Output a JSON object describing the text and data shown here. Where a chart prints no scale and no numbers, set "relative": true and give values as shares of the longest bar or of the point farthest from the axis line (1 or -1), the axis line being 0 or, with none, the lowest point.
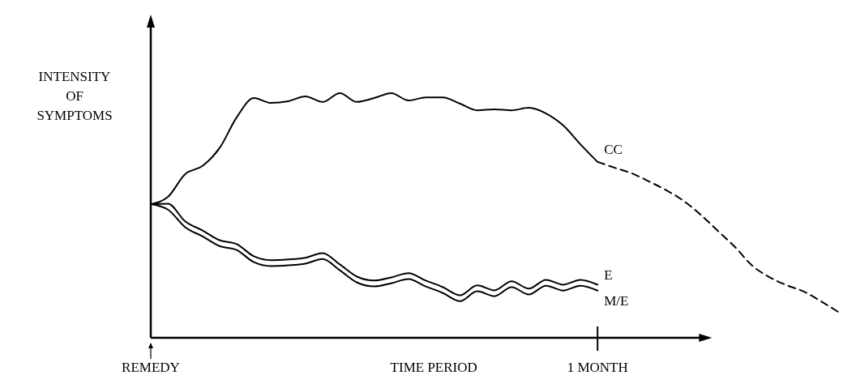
{
  "chart_data": {
    "type": "line",
    "relative": true,
    "xlabel": "TIME PERIOD",
    "ylabel": "INTENSITY OF SYMPTOMS",
    "legend": false,
    "categories": [
      "REMEDY",
      null,
      null,
      null,
      null,
      null,
      null,
      null,
      null,
      null,
      null,
      null,
      null,
      null,
      null,
      null,
      null,
      null,
      null,
      null,
      null,
      null,
      null,
      null,
      null,
      null,
      "1 MONTH",
      null,
      null,
      null,
      null,
      null,
      null,
      null,
      null,
      null,
      null,
      null,
      null,
      null,
      null
    ],
    "series": [
      {
        "name": "CC",
        "color": "#000000",
        "line_style": "solid",
        "values": [
          0.546,
          0.576,
          0.669,
          0.702,
          0.775,
          0.901,
          0.98,
          0.96,
          0.967,
          0.987,
          0.964,
          1,
          0.964,
          0.98,
          1,
          0.97,
          0.983,
          0.983,
          0.957,
          0.93,
          0.934,
          0.93,
          0.94,
          0.917,
          0.868,
          0.791,
          0.719,
          null,
          null,
          null,
          null,
          null,
          null,
          null,
          null,
          null,
          null,
          null,
          null,
          null,
          null
        ]
      },
      {
        "color": "#000000",
        "line_style": "dashed",
        "values": [
          null,
          null,
          null,
          null,
          null,
          null,
          null,
          null,
          null,
          null,
          null,
          null,
          null,
          null,
          null,
          null,
          null,
          null,
          null,
          null,
          null,
          null,
          null,
          null,
          null,
          null,
          0.719,
          0.695,
          0.672,
          0.639,
          0.603,
          0.56,
          0.503,
          0.437,
          0.371,
          0.295,
          0.248,
          0.215,
          0.189,
          0.149,
          0.106
        ]
      },
      {
        "name": "E",
        "color": "#000000",
        "line_style": "solid",
        "values": [
          0.546,
          0.548,
          0.476,
          0.439,
          0.399,
          0.383,
          0.333,
          0.317,
          0.32,
          0.327,
          0.346,
          0.3,
          0.25,
          0.234,
          0.247,
          0.264,
          0.234,
          0.207,
          0.174,
          0.214,
          0.194,
          0.231,
          0.201,
          0.237,
          0.217,
          0.237,
          0.217,
          null,
          null,
          null,
          null,
          null,
          null,
          null,
          null,
          null,
          null,
          null,
          null,
          null,
          null
        ]
      },
      {
        "name": "M/E",
        "color": "#000000",
        "line_style": "solid",
        "values": [
          0.546,
          0.524,
          0.452,
          0.415,
          0.375,
          0.359,
          0.309,
          0.293,
          0.296,
          0.303,
          0.322,
          0.276,
          0.226,
          0.21,
          0.223,
          0.24,
          0.21,
          0.183,
          0.15,
          0.19,
          0.17,
          0.207,
          0.177,
          0.213,
          0.193,
          0.213,
          0.193,
          null,
          null,
          null,
          null,
          null,
          null,
          null,
          null,
          null,
          null,
          null,
          null,
          null,
          null
        ]
      }
    ]
  }
}
